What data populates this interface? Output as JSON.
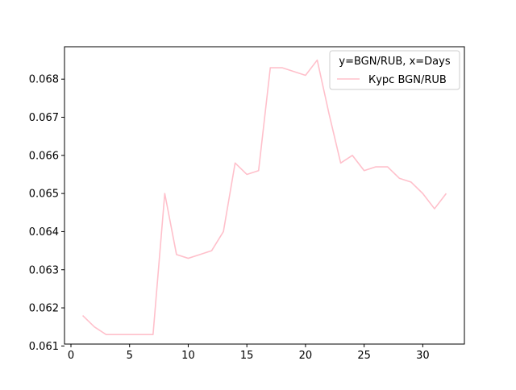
{
  "chart_data": {
    "type": "line",
    "title": "",
    "xlabel": "",
    "ylabel": "",
    "xlim": [
      -0.55,
      33.55
    ],
    "ylim": [
      0.06105,
      0.06885
    ],
    "x_ticks": [
      0,
      5,
      10,
      15,
      20,
      25,
      30
    ],
    "y_ticks": [
      0.061,
      0.062,
      0.063,
      0.064,
      0.065,
      0.066,
      0.067,
      0.068
    ],
    "x_tick_labels": [
      "0",
      "5",
      "10",
      "15",
      "20",
      "25",
      "30"
    ],
    "y_tick_labels": [
      "0.061",
      "0.062",
      "0.063",
      "0.064",
      "0.065",
      "0.066",
      "0.067",
      "0.068"
    ],
    "grid": false,
    "legend": {
      "title": "y=BGN/RUB, x=Days",
      "placement": "top-right"
    },
    "series": [
      {
        "name": "Курс BGN/RUB",
        "color": "#ffc0cb",
        "x": [
          1,
          2,
          3,
          4,
          5,
          6,
          7,
          8,
          9,
          10,
          11,
          12,
          13,
          14,
          15,
          16,
          17,
          18,
          19,
          20,
          21,
          22,
          23,
          24,
          25,
          26,
          27,
          28,
          29,
          30,
          31,
          32
        ],
        "y": [
          0.0618,
          0.0615,
          0.0613,
          0.0613,
          0.0613,
          0.0613,
          0.0613,
          0.065,
          0.0634,
          0.0633,
          0.0634,
          0.0635,
          0.064,
          0.0658,
          0.0655,
          0.0656,
          0.0683,
          0.0683,
          0.0682,
          0.0681,
          0.0685,
          0.0671,
          0.0658,
          0.066,
          0.0656,
          0.0657,
          0.0657,
          0.0654,
          0.0653,
          0.065,
          0.0646,
          0.065
        ]
      }
    ]
  }
}
